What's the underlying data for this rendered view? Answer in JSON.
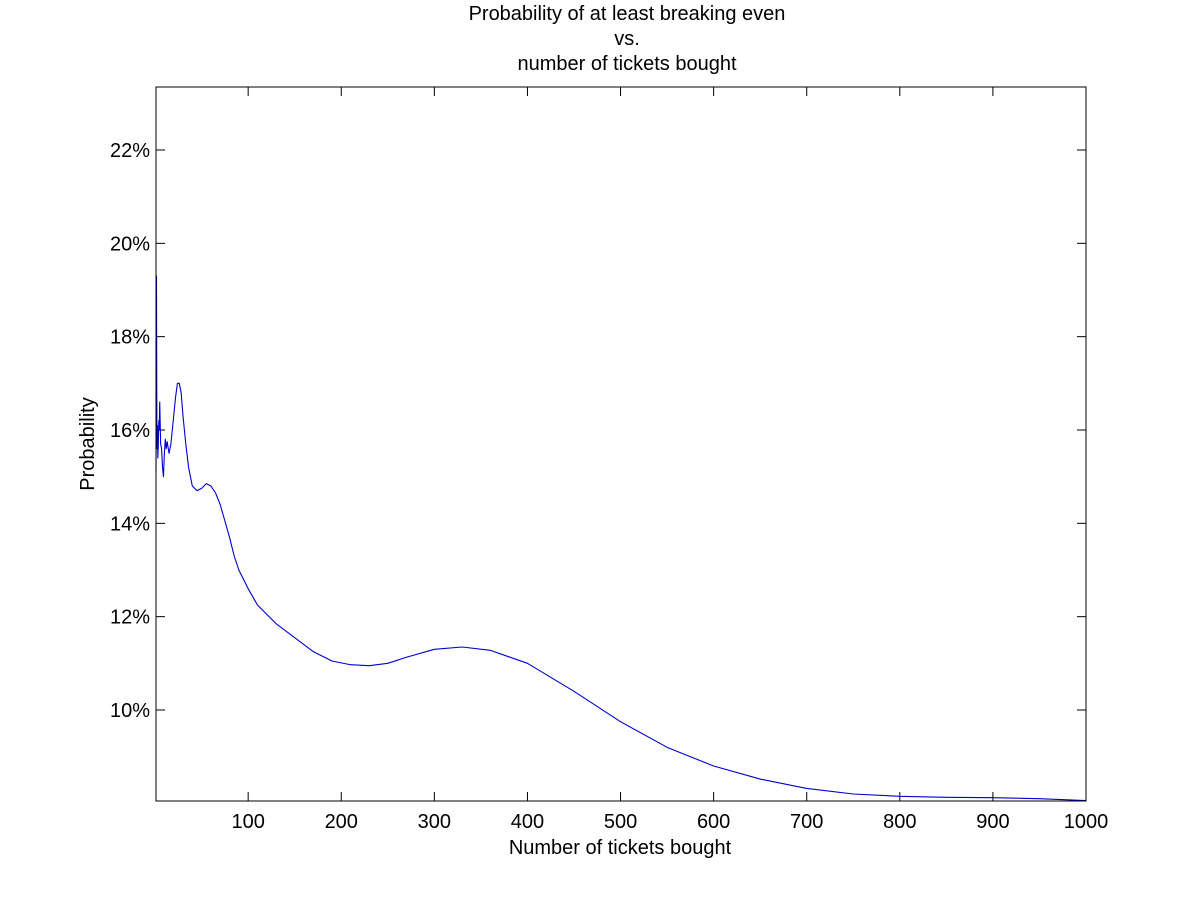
{
  "chart_data": {
    "type": "line",
    "title_lines": [
      "Probability of at least breaking even",
      "vs.",
      "number of tickets bought"
    ],
    "xlabel": "Number of tickets bought",
    "ylabel": "Probability",
    "xlim": [
      1,
      1000
    ],
    "ylim": [
      0.0805,
      0.2335
    ],
    "x_ticks": [
      100,
      200,
      300,
      400,
      500,
      600,
      700,
      800,
      900,
      1000
    ],
    "x_tick_labels": [
      "100",
      "200",
      "300",
      "400",
      "500",
      "600",
      "700",
      "800",
      "900",
      "1000"
    ],
    "y_ticks": [
      0.1,
      0.12,
      0.14,
      0.16,
      0.18,
      0.2,
      0.22
    ],
    "y_tick_labels": [
      "10%",
      "12%",
      "14%",
      "16%",
      "18%",
      "20%",
      "22%"
    ],
    "grid": false,
    "series": [
      {
        "color": "#0000cc",
        "x": [
          1,
          1.5,
          2,
          2.5,
          3,
          3.5,
          4,
          4.5,
          5,
          6,
          7,
          8,
          9,
          10,
          11,
          12,
          13,
          15,
          17,
          20,
          22,
          24,
          26,
          28,
          30,
          33,
          36,
          40,
          45,
          50,
          55,
          60,
          65,
          70,
          75,
          80,
          85,
          90,
          100,
          110,
          120,
          130,
          140,
          150,
          170,
          190,
          210,
          230,
          250,
          270,
          300,
          330,
          360,
          400,
          450,
          500,
          550,
          600,
          650,
          700,
          750,
          800,
          850,
          900,
          950,
          1000
        ],
        "y": [
          0.151,
          0.193,
          0.156,
          0.161,
          0.154,
          0.157,
          0.162,
          0.16,
          0.166,
          0.157,
          0.156,
          0.152,
          0.15,
          0.155,
          0.158,
          0.156,
          0.1575,
          0.155,
          0.157,
          0.163,
          0.167,
          0.17,
          0.17,
          0.168,
          0.163,
          0.157,
          0.152,
          0.148,
          0.147,
          0.1475,
          0.1485,
          0.148,
          0.1465,
          0.144,
          0.1405,
          0.137,
          0.133,
          0.13,
          0.126,
          0.1225,
          0.1205,
          0.1185,
          0.117,
          0.1155,
          0.1125,
          0.1105,
          0.1097,
          0.1095,
          0.11,
          0.1113,
          0.113,
          0.1135,
          0.1128,
          0.11,
          0.104,
          0.0975,
          0.092,
          0.088,
          0.0852,
          0.0832,
          0.082,
          0.0815,
          0.0813,
          0.0812,
          0.081,
          0.0806
        ]
      }
    ]
  }
}
